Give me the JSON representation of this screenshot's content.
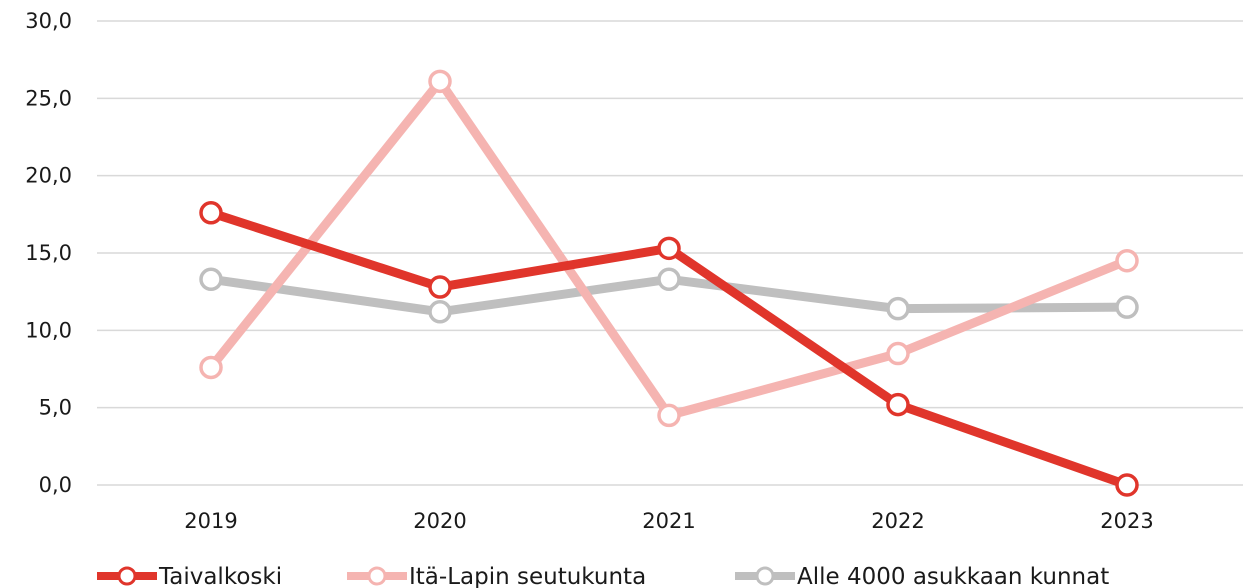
{
  "chart_data": {
    "type": "line",
    "title": "",
    "xlabel": "",
    "ylabel": "",
    "categories": [
      "2019",
      "2020",
      "2021",
      "2022",
      "2023"
    ],
    "y_ticks": [
      "0,0",
      "5,0",
      "10,0",
      "15,0",
      "20,0",
      "25,0",
      "30,0"
    ],
    "ylim": [
      0,
      30
    ],
    "grid": true,
    "legend_position": "bottom",
    "series": [
      {
        "name": "Taivalkoski",
        "color": "#e0352b",
        "values": [
          17.6,
          12.8,
          15.3,
          5.2,
          0.0
        ]
      },
      {
        "name": "Itä-Lapin seutukunta",
        "color": "#f5b4b1",
        "values": [
          7.6,
          26.1,
          4.5,
          8.5,
          14.5
        ]
      },
      {
        "name": "Alle 4000 asukkaan kunnat",
        "color": "#bfbfbf",
        "values": [
          13.3,
          11.2,
          13.3,
          11.4,
          11.5
        ]
      }
    ]
  }
}
